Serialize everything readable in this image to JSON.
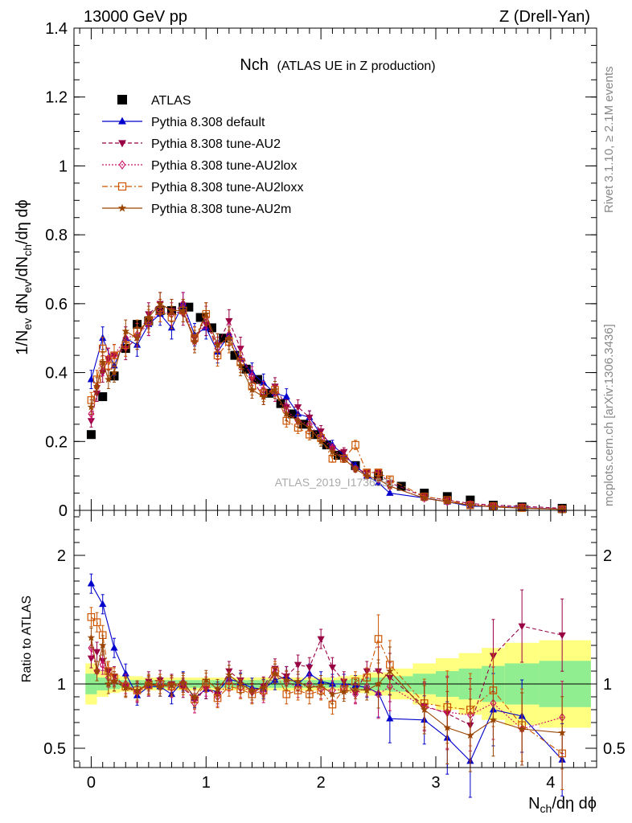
{
  "header": {
    "left": "13000 GeV pp",
    "right": "Z (Drell-Yan)"
  },
  "title": {
    "main": "Nch",
    "sub": "(ATLAS UE in Z production)"
  },
  "side_labels": {
    "rivet": "Rivet 3.1.10, ≥ 2.1M events",
    "mcplots": "mcplots.cern.ch [arXiv:1306.3436]"
  },
  "watermark": "ATLAS_2019_I1736531",
  "xlabel": {
    "main": "N",
    "sub": "ch",
    "rest": "/dη dϕ"
  },
  "ylabel_top": {
    "a": "1/N",
    "a_sub": "ev",
    "b": " dN",
    "b_sub": "ev",
    "c": "/dN",
    "c_sub": "ch",
    "d": "/dη dϕ"
  },
  "ylabel_bottom": "Ratio to ATLAS",
  "chart_data": [
    {
      "type": "scatter",
      "panel": "main",
      "xlim": [
        -0.15,
        4.4
      ],
      "ylim": [
        0,
        1.4
      ],
      "x_ticks": [
        "0",
        "1",
        "2",
        "3",
        "4"
      ],
      "y_ticks": [
        "0",
        "0.2",
        "0.4",
        "0.6",
        "0.8",
        "1",
        "1.2",
        "1.4"
      ],
      "series": [
        {
          "name": "ATLAS",
          "color": "#000000",
          "marker": "square-filled",
          "line": "none",
          "x": [
            0,
            0.1,
            0.2,
            0.3,
            0.4,
            0.5,
            0.6,
            0.7,
            0.8,
            0.85,
            0.95,
            1.05,
            1.15,
            1.25,
            1.35,
            1.45,
            1.55,
            1.65,
            1.75,
            1.85,
            1.95,
            2.05,
            2.15,
            2.3,
            2.5,
            2.7,
            2.9,
            3.1,
            3.3,
            3.5,
            3.75,
            4.1
          ],
          "y": [
            0.22,
            0.33,
            0.39,
            0.47,
            0.54,
            0.55,
            0.58,
            0.58,
            0.59,
            0.59,
            0.56,
            0.53,
            0.5,
            0.45,
            0.41,
            0.38,
            0.34,
            0.31,
            0.28,
            0.25,
            0.22,
            0.19,
            0.16,
            0.13,
            0.1,
            0.07,
            0.05,
            0.04,
            0.03,
            0.015,
            0.01,
            0.006
          ]
        },
        {
          "name": "Pythia 8.308 default",
          "color": "#0000cc",
          "marker": "triangle-up-filled",
          "line": "solid",
          "x": [
            0,
            0.1,
            0.2,
            0.3,
            0.4,
            0.5,
            0.6,
            0.7,
            0.8,
            0.9,
            1.0,
            1.1,
            1.2,
            1.3,
            1.4,
            1.5,
            1.6,
            1.7,
            1.8,
            1.9,
            2.0,
            2.1,
            2.2,
            2.3,
            2.4,
            2.5,
            2.6,
            2.9,
            3.1,
            3.3,
            3.5,
            3.75,
            4.1
          ],
          "y": [
            0.38,
            0.5,
            0.42,
            0.5,
            0.48,
            0.54,
            0.57,
            0.53,
            0.6,
            0.51,
            0.53,
            0.46,
            0.51,
            0.44,
            0.4,
            0.37,
            0.34,
            0.33,
            0.28,
            0.27,
            0.22,
            0.19,
            0.16,
            0.13,
            0.1,
            0.08,
            0.05,
            0.036,
            0.025,
            0.012,
            0.012,
            0.008,
            0.003
          ]
        },
        {
          "name": "Pythia 8.308 tune-AU2",
          "color": "#990044",
          "marker": "triangle-down-filled",
          "line": "dashed",
          "x": [
            0,
            0.05,
            0.1,
            0.15,
            0.2,
            0.3,
            0.4,
            0.5,
            0.6,
            0.7,
            0.8,
            0.9,
            1.0,
            1.1,
            1.2,
            1.3,
            1.4,
            1.5,
            1.6,
            1.7,
            1.8,
            1.9,
            2.0,
            2.1,
            2.2,
            2.3,
            2.4,
            2.5,
            2.6,
            2.9,
            3.1,
            3.3,
            3.5,
            3.75,
            4.1
          ],
          "y": [
            0.26,
            0.34,
            0.4,
            0.44,
            0.45,
            0.47,
            0.5,
            0.57,
            0.6,
            0.58,
            0.57,
            0.5,
            0.54,
            0.48,
            0.55,
            0.47,
            0.38,
            0.33,
            0.36,
            0.3,
            0.3,
            0.27,
            0.23,
            0.18,
            0.17,
            0.12,
            0.11,
            0.11,
            0.08,
            0.04,
            0.03,
            0.02,
            0.015,
            0.012,
            0.006
          ]
        },
        {
          "name": "Pythia 8.308 tune-AU2lox",
          "color": "#cc1166",
          "marker": "diamond-open",
          "line": "dotted",
          "x": [
            0,
            0.05,
            0.1,
            0.15,
            0.2,
            0.3,
            0.4,
            0.5,
            0.6,
            0.7,
            0.8,
            0.9,
            1.0,
            1.1,
            1.2,
            1.3,
            1.4,
            1.5,
            1.6,
            1.7,
            1.8,
            1.9,
            2.0,
            2.1,
            2.2,
            2.3,
            2.4,
            2.5,
            2.6,
            2.9,
            3.1,
            3.3,
            3.5,
            3.75,
            4.1
          ],
          "y": [
            0.28,
            0.36,
            0.42,
            0.44,
            0.45,
            0.5,
            0.51,
            0.54,
            0.58,
            0.57,
            0.6,
            0.49,
            0.56,
            0.47,
            0.51,
            0.44,
            0.39,
            0.35,
            0.34,
            0.29,
            0.26,
            0.25,
            0.21,
            0.18,
            0.15,
            0.12,
            0.1,
            0.09,
            0.07,
            0.035,
            0.025,
            0.017,
            0.012,
            0.008,
            0.004
          ]
        },
        {
          "name": "Pythia 8.308 tune-AU2loxx",
          "color": "#cc5500",
          "marker": "square-open",
          "line": "dashdot",
          "x": [
            0,
            0.05,
            0.1,
            0.15,
            0.2,
            0.3,
            0.4,
            0.5,
            0.6,
            0.7,
            0.8,
            0.9,
            1.0,
            1.1,
            1.2,
            1.3,
            1.4,
            1.5,
            1.6,
            1.7,
            1.8,
            1.9,
            2.0,
            2.1,
            2.2,
            2.3,
            2.4,
            2.5,
            2.6,
            2.9,
            3.1,
            3.3,
            3.5,
            3.75,
            4.1
          ],
          "y": [
            0.32,
            0.38,
            0.47,
            0.42,
            0.45,
            0.48,
            0.52,
            0.55,
            0.58,
            0.56,
            0.58,
            0.5,
            0.57,
            0.45,
            0.49,
            0.43,
            0.36,
            0.34,
            0.35,
            0.26,
            0.24,
            0.22,
            0.21,
            0.15,
            0.15,
            0.19,
            0.11,
            0.11,
            0.09,
            0.04,
            0.03,
            0.015,
            0.012,
            0.007,
            0.003
          ]
        },
        {
          "name": "Pythia 8.308 tune-AU2m",
          "color": "#994400",
          "marker": "star-filled",
          "line": "solid",
          "x": [
            0,
            0.05,
            0.1,
            0.15,
            0.2,
            0.3,
            0.4,
            0.5,
            0.6,
            0.7,
            0.8,
            0.9,
            1.0,
            1.1,
            1.2,
            1.3,
            1.4,
            1.5,
            1.6,
            1.7,
            1.8,
            1.9,
            2.0,
            2.1,
            2.2,
            2.3,
            2.4,
            2.5,
            2.6,
            2.9,
            3.1,
            3.3,
            3.5,
            3.75,
            4.1
          ],
          "y": [
            0.3,
            0.36,
            0.43,
            0.38,
            0.4,
            0.52,
            0.5,
            0.56,
            0.6,
            0.58,
            0.58,
            0.49,
            0.57,
            0.48,
            0.5,
            0.42,
            0.35,
            0.33,
            0.35,
            0.28,
            0.26,
            0.24,
            0.2,
            0.17,
            0.15,
            0.12,
            0.1,
            0.09,
            0.07,
            0.035,
            0.025,
            0.015,
            0.01,
            0.006,
            0.003
          ]
        }
      ]
    },
    {
      "type": "scatter",
      "panel": "ratio",
      "xlim": [
        -0.15,
        4.4
      ],
      "ylim": [
        0.35,
        2.35
      ],
      "y_ticks": [
        "0.5",
        "1",
        "2"
      ],
      "reference_line": 1,
      "band_inner_color": "#90ee90",
      "band_outer_color": "#ffff80",
      "band": {
        "x_edges": [
          -0.05,
          0.05,
          0.15,
          0.25,
          0.35,
          0.45,
          0.55,
          0.65,
          0.75,
          0.85,
          0.95,
          1.05,
          1.15,
          1.25,
          1.35,
          1.45,
          1.55,
          1.65,
          1.75,
          1.85,
          1.95,
          2.05,
          2.15,
          2.25,
          2.4,
          2.6,
          2.8,
          3.0,
          3.2,
          3.4,
          3.6,
          3.9,
          4.35
        ],
        "inner": [
          0.08,
          0.05,
          0.04,
          0.03,
          0.03,
          0.03,
          0.03,
          0.03,
          0.03,
          0.03,
          0.03,
          0.03,
          0.03,
          0.03,
          0.03,
          0.03,
          0.03,
          0.03,
          0.03,
          0.03,
          0.03,
          0.03,
          0.03,
          0.04,
          0.05,
          0.06,
          0.08,
          0.1,
          0.12,
          0.14,
          0.16,
          0.18
        ],
        "outer": [
          0.16,
          0.1,
          0.07,
          0.06,
          0.06,
          0.05,
          0.05,
          0.05,
          0.05,
          0.05,
          0.05,
          0.05,
          0.05,
          0.05,
          0.05,
          0.05,
          0.05,
          0.05,
          0.05,
          0.05,
          0.05,
          0.05,
          0.06,
          0.07,
          0.09,
          0.12,
          0.16,
          0.2,
          0.24,
          0.28,
          0.32,
          0.34
        ]
      },
      "series": [
        {
          "name": "Pythia 8.308 default",
          "color": "#0000cc",
          "marker": "triangle-up-filled",
          "line": "solid",
          "x": [
            0,
            0.1,
            0.2,
            0.3,
            0.4,
            0.5,
            0.6,
            0.7,
            0.8,
            0.9,
            1.0,
            1.1,
            1.2,
            1.3,
            1.4,
            1.5,
            1.6,
            1.7,
            1.8,
            1.9,
            2.0,
            2.1,
            2.2,
            2.3,
            2.4,
            2.5,
            2.6,
            2.9,
            3.1,
            3.3,
            3.5,
            3.75,
            4.1
          ],
          "y": [
            1.78,
            1.62,
            1.28,
            1.08,
            0.91,
            0.98,
            0.98,
            0.92,
            1.02,
            0.89,
            0.96,
            0.94,
            1.04,
            1.01,
            0.97,
            0.96,
            1.03,
            1.06,
            1.0,
            1.08,
            1.02,
            1.0,
            1.0,
            0.99,
            0.97,
            0.93,
            0.73,
            0.72,
            0.58,
            0.4,
            0.8,
            0.75,
            0.41
          ]
        },
        {
          "name": "Pythia 8.308 tune-AU2",
          "color": "#990044",
          "marker": "triangle-down-filled",
          "line": "dashed",
          "x": [
            0,
            0.05,
            0.1,
            0.15,
            0.2,
            0.3,
            0.4,
            0.5,
            0.6,
            0.7,
            0.8,
            0.9,
            1.0,
            1.1,
            1.2,
            1.3,
            1.4,
            1.5,
            1.6,
            1.7,
            1.8,
            1.9,
            2.0,
            2.1,
            2.2,
            2.3,
            2.4,
            2.5,
            2.6,
            2.9,
            3.1,
            3.3,
            3.5,
            3.75,
            4.1
          ],
          "y": [
            1.2,
            1.25,
            1.18,
            1.1,
            1.06,
            0.98,
            0.93,
            1.02,
            1.03,
            1.0,
            0.97,
            0.88,
            0.96,
            0.92,
            1.1,
            1.03,
            0.93,
            0.98,
            1.12,
            1.06,
            1.15,
            1.13,
            1.35,
            1.13,
            1.02,
            0.93,
            1.1,
            1.1,
            1.05,
            0.83,
            0.77,
            0.68,
            1.22,
            1.45,
            1.38
          ]
        },
        {
          "name": "Pythia 8.308 tune-AU2lox",
          "color": "#cc1166",
          "marker": "diamond-open",
          "line": "dotted",
          "x": [
            0,
            0.05,
            0.1,
            0.15,
            0.2,
            0.3,
            0.4,
            0.5,
            0.6,
            0.7,
            0.8,
            0.9,
            1.0,
            1.1,
            1.2,
            1.3,
            1.4,
            1.5,
            1.6,
            1.7,
            1.8,
            1.9,
            2.0,
            2.1,
            2.2,
            2.3,
            2.4,
            2.5,
            2.6,
            2.9,
            3.1,
            3.3,
            3.5,
            3.75,
            4.1
          ],
          "y": [
            1.28,
            1.1,
            1.15,
            1.05,
            1.02,
            1.0,
            0.94,
            0.98,
            1.0,
            0.97,
            1.01,
            0.85,
            0.98,
            0.9,
            1.02,
            0.97,
            0.95,
            0.93,
            1.08,
            1.02,
            0.97,
            1.0,
            0.96,
            0.95,
            0.96,
            0.92,
            0.98,
            0.92,
            0.98,
            0.82,
            0.78,
            0.76,
            0.85,
            0.65,
            0.74
          ]
        },
        {
          "name": "Pythia 8.308 tune-AU2loxx",
          "color": "#cc5500",
          "marker": "square-open",
          "line": "dashdot",
          "x": [
            0,
            0.05,
            0.1,
            0.15,
            0.2,
            0.3,
            0.4,
            0.5,
            0.6,
            0.7,
            0.8,
            0.9,
            1.0,
            1.1,
            1.2,
            1.3,
            1.4,
            1.5,
            1.6,
            1.7,
            1.8,
            1.9,
            2.0,
            2.1,
            2.2,
            2.3,
            2.4,
            2.5,
            2.6,
            2.9,
            3.1,
            3.3,
            3.5,
            3.75,
            4.1
          ],
          "y": [
            1.52,
            1.48,
            1.38,
            1.1,
            1.05,
            0.98,
            0.95,
            0.99,
            1.0,
            0.98,
            0.99,
            0.88,
            1.01,
            0.89,
            0.98,
            0.96,
            0.92,
            0.95,
            1.1,
            0.92,
            0.95,
            0.92,
            0.95,
            0.84,
            0.96,
            1.02,
            1.05,
            1.35,
            1.15,
            0.85,
            0.82,
            0.8,
            0.95,
            0.68,
            0.46
          ]
        },
        {
          "name": "Pythia 8.308 tune-AU2m",
          "color": "#994400",
          "marker": "star-filled",
          "line": "solid",
          "x": [
            0,
            0.05,
            0.1,
            0.15,
            0.2,
            0.3,
            0.4,
            0.5,
            0.6,
            0.7,
            0.8,
            0.9,
            1.0,
            1.1,
            1.2,
            1.3,
            1.4,
            1.5,
            1.6,
            1.7,
            1.8,
            1.9,
            2.0,
            2.1,
            2.2,
            2.3,
            2.4,
            2.5,
            2.6,
            2.9,
            3.1,
            3.3,
            3.5,
            3.75,
            4.1
          ],
          "y": [
            1.36,
            1.1,
            1.3,
            1.0,
            1.02,
            0.97,
            0.95,
            1.0,
            0.98,
            0.99,
            1.01,
            0.9,
            1.03,
            0.96,
            1.07,
            1.0,
            0.95,
            0.97,
            1.08,
            1.03,
            1.02,
            0.97,
            0.99,
            0.92,
            0.94,
            0.96,
            0.95,
            1.0,
            1.1,
            0.8,
            0.66,
            0.6,
            0.72,
            0.65,
            0.62
          ]
        }
      ]
    }
  ]
}
